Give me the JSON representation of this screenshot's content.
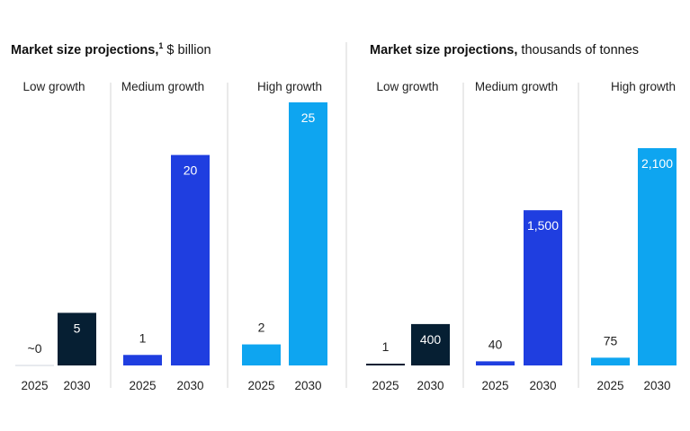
{
  "chart_data": [
    {
      "type": "bar",
      "title": "Market size projections,",
      "title_superscript": "1",
      "unit": "$ billion",
      "colors": {
        "low": "#061f33",
        "medium": "#1f3ee0",
        "high": "#0ea5f0"
      },
      "groups": [
        {
          "name": "Low growth",
          "color_key": "low",
          "categories": [
            "2025",
            "2030"
          ],
          "values": [
            0,
            5
          ],
          "labels": [
            "~0",
            "5"
          ]
        },
        {
          "name": "Medium growth",
          "color_key": "medium",
          "categories": [
            "2025",
            "2030"
          ],
          "values": [
            1,
            20
          ],
          "labels": [
            "1",
            "20"
          ]
        },
        {
          "name": "High growth",
          "color_key": "high",
          "categories": [
            "2025",
            "2030"
          ],
          "values": [
            2,
            25
          ],
          "labels": [
            "2",
            "25"
          ]
        }
      ]
    },
    {
      "type": "bar",
      "title": "Market size projections,",
      "unit": "thousands of tonnes",
      "colors": {
        "low": "#061f33",
        "medium": "#1f3ee0",
        "high": "#0ea5f0"
      },
      "groups": [
        {
          "name": "Low growth",
          "color_key": "low",
          "categories": [
            "2025",
            "2030"
          ],
          "values": [
            1,
            400
          ],
          "labels": [
            "1",
            "400"
          ]
        },
        {
          "name": "Medium growth",
          "color_key": "medium",
          "categories": [
            "2025",
            "2030"
          ],
          "values": [
            40,
            1500
          ],
          "labels": [
            "40",
            "1,500"
          ]
        },
        {
          "name": "High growth",
          "color_key": "high",
          "categories": [
            "2025",
            "2030"
          ],
          "values": [
            75,
            2100
          ],
          "labels": [
            "75",
            "2,100"
          ]
        }
      ]
    }
  ]
}
